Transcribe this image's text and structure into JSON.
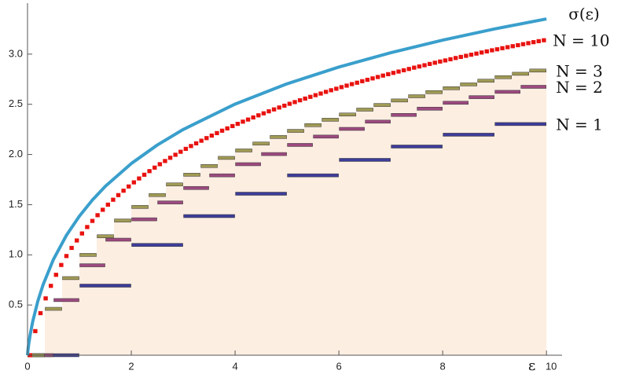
{
  "chart_data": {
    "type": "step",
    "xlabel": "ε",
    "xlim": [
      0,
      10.3
    ],
    "ylim": [
      0,
      3.5
    ],
    "xticks": [
      0,
      2,
      4,
      6,
      8,
      10
    ],
    "yticks": [
      0.5,
      {
        "value": 1,
        "label": "1.0"
      },
      1.5,
      {
        "value": 2,
        "label": "2.0"
      },
      2.5,
      {
        "value": 3,
        "label": "3.0"
      }
    ],
    "fill_series": 2,
    "fill_color": "#fdeee2",
    "series": [
      {
        "name": "N = 1",
        "kind": "step",
        "color": "#3d3d99",
        "values": [
          0,
          0.693,
          1.099,
          1.386,
          1.609,
          1.792,
          1.946,
          2.079,
          2.197,
          2.303
        ]
      },
      {
        "name": "N = 2",
        "kind": "step",
        "color": "#9c4a7f",
        "values": [
          0,
          0.549,
          0.896,
          1.151,
          1.354,
          1.522,
          1.666,
          1.792,
          1.903,
          2.004,
          2.095,
          2.178,
          2.255,
          2.327,
          2.394,
          2.456,
          2.515,
          2.571,
          2.624,
          2.674
        ]
      },
      {
        "name": "N = 3",
        "kind": "step",
        "color": "#a09a55",
        "values": [
          0,
          0.462,
          0.768,
          0.999,
          1.185,
          1.342,
          1.477,
          1.596,
          1.702,
          1.798,
          1.885,
          1.966,
          2.04,
          2.109,
          2.174,
          2.235,
          2.292,
          2.346,
          2.398,
          2.447,
          2.493,
          2.538,
          2.58,
          2.621,
          2.66,
          2.698,
          2.735,
          2.77,
          2.804,
          2.836
        ]
      },
      {
        "name": "N = 10",
        "kind": "step",
        "color": "#e8120f",
        "values": [
          0,
          0.24,
          0.419,
          0.566,
          0.691,
          0.801,
          0.899,
          0.988,
          1.069,
          1.143,
          1.213,
          1.277,
          1.338,
          1.395,
          1.449,
          1.5,
          1.549,
          1.595,
          1.639,
          1.681,
          1.722,
          1.761,
          1.798,
          1.834,
          1.869,
          1.903,
          1.935,
          1.967,
          1.997,
          2.027,
          2.056,
          2.084,
          2.111,
          2.137,
          2.163,
          2.188,
          2.213,
          2.237,
          2.26,
          2.283,
          2.305,
          2.327,
          2.348,
          2.369,
          2.39,
          2.41,
          2.43,
          2.449,
          2.468,
          2.486,
          2.505,
          2.522,
          2.54,
          2.557,
          2.574,
          2.591,
          2.607,
          2.624,
          2.64,
          2.655,
          2.671,
          2.686,
          2.701,
          2.715,
          2.73,
          2.744,
          2.758,
          2.772,
          2.786,
          2.8,
          2.813,
          2.826,
          2.839,
          2.852,
          2.865,
          2.877,
          2.889,
          2.902,
          2.914,
          2.926,
          2.937,
          2.949,
          2.961,
          2.972,
          2.983,
          2.994,
          3.005,
          3.016,
          3.027,
          3.038,
          3.048,
          3.059,
          3.069,
          3.079,
          3.089,
          3.099,
          3.109,
          3.119,
          3.129,
          3.138
        ]
      },
      {
        "name": "σ(ε)",
        "kind": "line",
        "color": "#3a9fcc",
        "x": [
          0,
          0.01,
          0.02,
          0.05,
          0.1,
          0.2,
          0.3,
          0.5,
          0.75,
          1,
          1.25,
          1.5,
          2,
          2.5,
          3,
          4,
          5,
          6,
          7,
          8,
          9,
          10
        ],
        "values": [
          0,
          0.056,
          0.098,
          0.201,
          0.335,
          0.541,
          0.702,
          0.955,
          1.195,
          1.386,
          1.546,
          1.683,
          1.91,
          2.094,
          2.249,
          2.502,
          2.704,
          2.871,
          3.014,
          3.139,
          3.251,
          3.351
        ]
      }
    ]
  }
}
